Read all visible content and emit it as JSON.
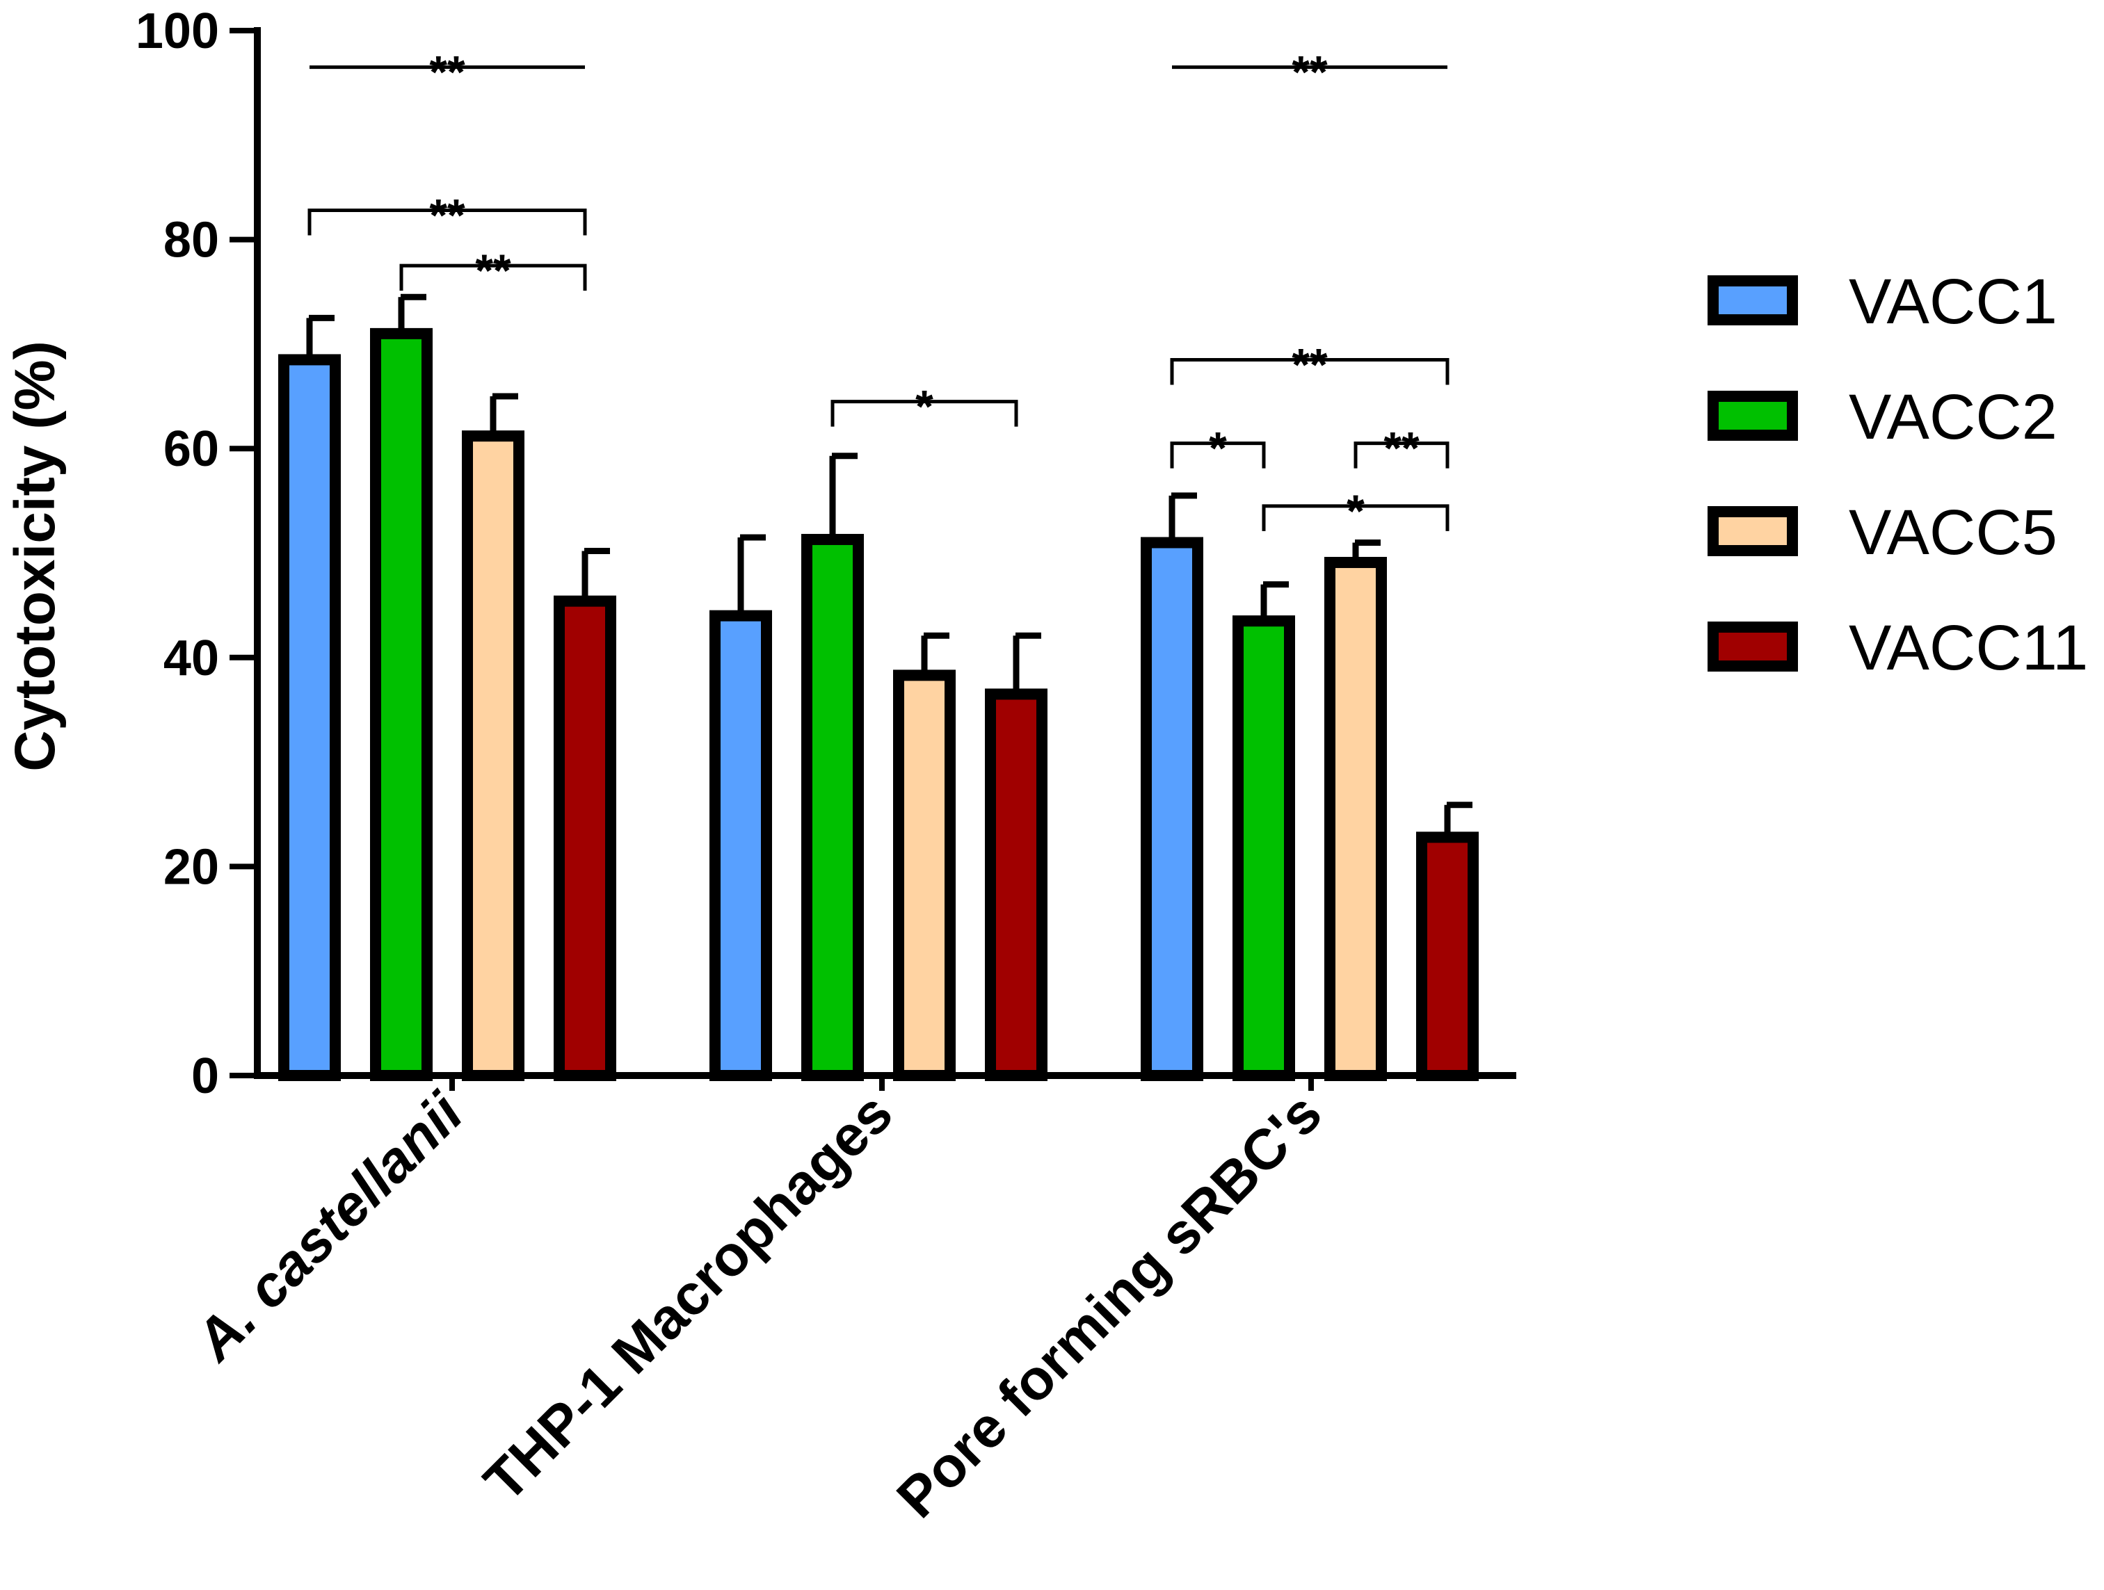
{
  "chart_data": {
    "type": "bar",
    "title": "",
    "xlabel": "",
    "ylabel": "Cytotoxicity (%)",
    "ylim": [
      0,
      100
    ],
    "yticks": [
      "0",
      "20",
      "40",
      "60",
      "80",
      "100"
    ],
    "categories": [
      "A. castellanii",
      "THP-1 Macrophages",
      "Pore forming sRBC's"
    ],
    "category_italic": [
      true,
      false,
      false
    ],
    "series": [
      {
        "name": "VACC1",
        "color": "#58a0ff",
        "values": [
          68.5,
          44,
          51
        ],
        "errors": [
          4,
          7.5,
          4.5
        ]
      },
      {
        "name": "VACC2",
        "color": "#00c000",
        "values": [
          71,
          51.3,
          43.5
        ],
        "errors": [
          3.5,
          8,
          3.5
        ]
      },
      {
        "name": "VACC5",
        "color": "#ffd3a2",
        "values": [
          61.2,
          38.3,
          49.1
        ],
        "errors": [
          3.8,
          3.8,
          1.9
        ]
      },
      {
        "name": "VACC11",
        "color": "#a00000",
        "values": [
          45.4,
          36.5,
          22.8
        ],
        "errors": [
          4.8,
          5.6,
          3.1
        ]
      }
    ],
    "significance": [
      {
        "group": 0,
        "from": 0,
        "to": 3,
        "label": "**",
        "style": "line",
        "y": 96.5
      },
      {
        "group": 0,
        "from": 0,
        "to": 3,
        "label": "**",
        "style": "bracket",
        "y": 82.8
      },
      {
        "group": 0,
        "from": 1,
        "to": 3,
        "label": "**",
        "style": "bracket",
        "y": 77.5
      },
      {
        "group": 1,
        "from": 1,
        "to": 3,
        "label": "*",
        "style": "bracket",
        "y": 64.5
      },
      {
        "group": 2,
        "from": 0,
        "to": 3,
        "label": "**",
        "style": "line",
        "y": 96.5
      },
      {
        "group": 2,
        "from": 0,
        "to": 3,
        "label": "**",
        "style": "bracket",
        "y": 68.5
      },
      {
        "group": 2,
        "from": 0,
        "to": 1,
        "label": "*",
        "style": "bracket",
        "y": 60.5
      },
      {
        "group": 2,
        "from": 2,
        "to": 3,
        "label": "**",
        "style": "bracket",
        "y": 60.5
      },
      {
        "group": 2,
        "from": 1,
        "to": 3,
        "label": "*",
        "style": "bracket",
        "y": 54.5
      }
    ],
    "legend_position": "right"
  }
}
